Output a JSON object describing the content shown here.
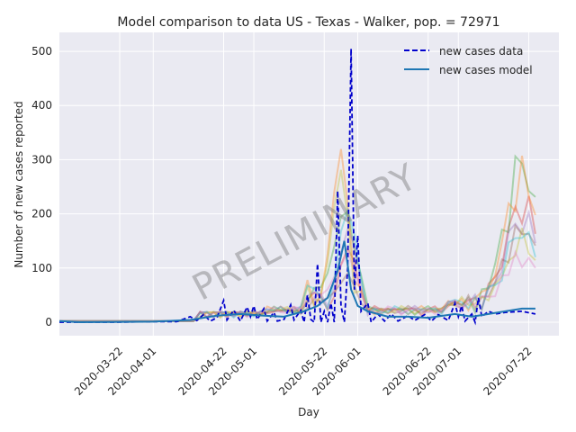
{
  "chart_data": {
    "type": "line",
    "title": "Model comparison to data US - Texas - Walker, pop. = 72971",
    "xlabel": "Day",
    "ylabel": "Number of new cases reported",
    "x_range": [
      "2020-03-04",
      "2020-07-31"
    ],
    "ylim": [
      -25,
      535
    ],
    "grid": true,
    "legend_position": "top-right",
    "watermark": "PRELIMINARY",
    "x_ticks": [
      "2020-03-22",
      "2020-04-01",
      "2020-04-22",
      "2020-05-01",
      "2020-05-22",
      "2020-06-01",
      "2020-06-22",
      "2020-07-01",
      "2020-07-22"
    ],
    "y_ticks": [
      0,
      100,
      200,
      300,
      400,
      500
    ],
    "series": [
      {
        "name": "new cases data",
        "style": "dashed",
        "color": "#0000cc",
        "points": [
          [
            "2020-03-04",
            0
          ],
          [
            "2020-03-20",
            0
          ],
          [
            "2020-04-01",
            1
          ],
          [
            "2020-04-08",
            1
          ],
          [
            "2020-04-12",
            10
          ],
          [
            "2020-04-14",
            3
          ],
          [
            "2020-04-16",
            14
          ],
          [
            "2020-04-18",
            2
          ],
          [
            "2020-04-20",
            8
          ],
          [
            "2020-04-22",
            40
          ],
          [
            "2020-04-23",
            4
          ],
          [
            "2020-04-25",
            22
          ],
          [
            "2020-04-27",
            2
          ],
          [
            "2020-04-29",
            28
          ],
          [
            "2020-04-30",
            10
          ],
          [
            "2020-05-01",
            30
          ],
          [
            "2020-05-02",
            5
          ],
          [
            "2020-05-04",
            25
          ],
          [
            "2020-05-05",
            2
          ],
          [
            "2020-05-07",
            18
          ],
          [
            "2020-05-08",
            2
          ],
          [
            "2020-05-10",
            5
          ],
          [
            "2020-05-12",
            32
          ],
          [
            "2020-05-13",
            4
          ],
          [
            "2020-05-15",
            22
          ],
          [
            "2020-05-16",
            0
          ],
          [
            "2020-05-17",
            50
          ],
          [
            "2020-05-18",
            5
          ],
          [
            "2020-05-19",
            0
          ],
          [
            "2020-05-20",
            108
          ],
          [
            "2020-05-21",
            0
          ],
          [
            "2020-05-22",
            20
          ],
          [
            "2020-05-23",
            0
          ],
          [
            "2020-05-24",
            35
          ],
          [
            "2020-05-25",
            0
          ],
          [
            "2020-05-26",
            242
          ],
          [
            "2020-05-27",
            30
          ],
          [
            "2020-05-28",
            0
          ],
          [
            "2020-05-29",
            100
          ],
          [
            "2020-05-30",
            505
          ],
          [
            "2020-05-31",
            60
          ],
          [
            "2020-06-01",
            160
          ],
          [
            "2020-06-02",
            20
          ],
          [
            "2020-06-04",
            35
          ],
          [
            "2020-06-05",
            0
          ],
          [
            "2020-06-07",
            15
          ],
          [
            "2020-06-09",
            2
          ],
          [
            "2020-06-11",
            15
          ],
          [
            "2020-06-13",
            2
          ],
          [
            "2020-06-16",
            12
          ],
          [
            "2020-06-18",
            3
          ],
          [
            "2020-06-21",
            14
          ],
          [
            "2020-06-23",
            2
          ],
          [
            "2020-06-25",
            14
          ],
          [
            "2020-06-28",
            3
          ],
          [
            "2020-06-30",
            35
          ],
          [
            "2020-07-01",
            10
          ],
          [
            "2020-07-02",
            30
          ],
          [
            "2020-07-03",
            2
          ],
          [
            "2020-07-05",
            15
          ],
          [
            "2020-07-06",
            0
          ],
          [
            "2020-07-07",
            45
          ],
          [
            "2020-07-08",
            10
          ],
          [
            "2020-07-10",
            20
          ],
          [
            "2020-07-12",
            15
          ],
          [
            "2020-07-15",
            18
          ],
          [
            "2020-07-20",
            20
          ],
          [
            "2020-07-24",
            15
          ]
        ]
      },
      {
        "name": "new cases model",
        "style": "solid",
        "color": "#1f77b4",
        "points": [
          [
            "2020-03-04",
            2
          ],
          [
            "2020-03-10",
            0
          ],
          [
            "2020-04-01",
            1
          ],
          [
            "2020-04-12",
            4
          ],
          [
            "2020-04-20",
            12
          ],
          [
            "2020-04-27",
            15
          ],
          [
            "2020-05-04",
            12
          ],
          [
            "2020-05-10",
            10
          ],
          [
            "2020-05-16",
            20
          ],
          [
            "2020-05-20",
            30
          ],
          [
            "2020-05-23",
            45
          ],
          [
            "2020-05-26",
            95
          ],
          [
            "2020-05-28",
            150
          ],
          [
            "2020-05-30",
            60
          ],
          [
            "2020-06-01",
            30
          ],
          [
            "2020-06-04",
            20
          ],
          [
            "2020-06-10",
            10
          ],
          [
            "2020-06-16",
            10
          ],
          [
            "2020-06-22",
            8
          ],
          [
            "2020-06-30",
            15
          ],
          [
            "2020-07-05",
            10
          ],
          [
            "2020-07-10",
            15
          ],
          [
            "2020-07-15",
            20
          ],
          [
            "2020-07-20",
            25
          ],
          [
            "2020-07-24",
            25
          ]
        ]
      }
    ],
    "ensemble": {
      "description_colors": [
        "#d62728",
        "#2ca02c",
        "#ff7f0e",
        "#9467bd",
        "#8c564b",
        "#bcbd22",
        "#17becf",
        "#e377c2"
      ],
      "peak_values": [
        90,
        180,
        230,
        120,
        60,
        200,
        150,
        100
      ],
      "late_peak_values": [
        210,
        295,
        270,
        180,
        160,
        130,
        150,
        100
      ]
    }
  }
}
